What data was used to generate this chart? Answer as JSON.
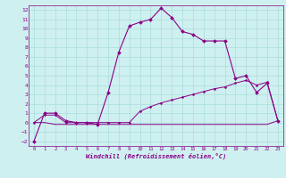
{
  "xlabel": "Windchill (Refroidissement éolien,°C)",
  "bg_color": "#cff0f0",
  "grid_color": "#aadddd",
  "line_color": "#880088",
  "xlim": [
    -0.5,
    23.5
  ],
  "ylim": [
    -2.5,
    12.5
  ],
  "yticks": [
    -2,
    -1,
    0,
    1,
    2,
    3,
    4,
    5,
    6,
    7,
    8,
    9,
    10,
    11,
    12
  ],
  "xticks": [
    0,
    1,
    2,
    3,
    4,
    5,
    6,
    7,
    8,
    9,
    10,
    11,
    12,
    13,
    14,
    15,
    16,
    17,
    18,
    19,
    20,
    21,
    22,
    23
  ],
  "series1_x": [
    0,
    1,
    2,
    3,
    4,
    5,
    6,
    7,
    8,
    9,
    10,
    11,
    12,
    13,
    14,
    15,
    16,
    17,
    18,
    19,
    20,
    21,
    22,
    23
  ],
  "series1_y": [
    -2.0,
    1.0,
    1.0,
    0.2,
    0.0,
    0.0,
    -0.2,
    3.2,
    7.5,
    10.3,
    10.7,
    11.0,
    12.2,
    11.2,
    9.7,
    9.4,
    8.7,
    8.7,
    8.7,
    4.7,
    5.0,
    3.2,
    4.2,
    0.2
  ],
  "series2_x": [
    0,
    1,
    2,
    3,
    4,
    5,
    6,
    7,
    8,
    9,
    10,
    11,
    12,
    13,
    14,
    15,
    16,
    17,
    18,
    19,
    20,
    21,
    22,
    23
  ],
  "series2_y": [
    0.0,
    0.8,
    0.8,
    0.0,
    0.0,
    0.0,
    0.0,
    0.0,
    0.0,
    0.0,
    1.2,
    1.7,
    2.1,
    2.4,
    2.7,
    3.0,
    3.3,
    3.6,
    3.8,
    4.2,
    4.5,
    4.0,
    4.3,
    0.2
  ],
  "series3_x": [
    0,
    1,
    2,
    3,
    4,
    5,
    6,
    7,
    8,
    9,
    10,
    11,
    12,
    13,
    14,
    15,
    16,
    17,
    18,
    19,
    20,
    21,
    22,
    23
  ],
  "series3_y": [
    0.0,
    0.0,
    -0.2,
    -0.2,
    -0.2,
    -0.2,
    -0.2,
    -0.2,
    -0.2,
    -0.2,
    -0.2,
    -0.2,
    -0.2,
    -0.2,
    -0.2,
    -0.2,
    -0.2,
    -0.2,
    -0.2,
    -0.2,
    -0.2,
    -0.2,
    -0.2,
    0.2
  ]
}
